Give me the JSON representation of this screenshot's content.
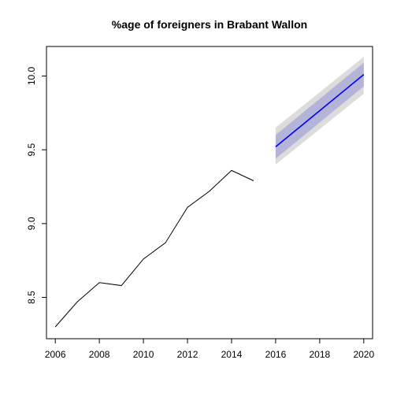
{
  "chart_data": {
    "type": "line",
    "title": "%age of foreigners in Brabant Wallon",
    "xlabel": "",
    "ylabel": "",
    "xlim": [
      2005.6,
      2020.4
    ],
    "ylim": [
      8.22,
      10.2
    ],
    "x_ticks": [
      2006,
      2008,
      2010,
      2012,
      2014,
      2016,
      2018,
      2020
    ],
    "y_ticks": [
      8.5,
      9.0,
      9.5,
      10.0
    ],
    "y_tick_labels": [
      "8.5",
      "9.0",
      "9.5",
      "10.0"
    ],
    "grid": false,
    "series": [
      {
        "role": "observed",
        "color": "#000000",
        "x": [
          2006,
          2007,
          2008,
          2009,
          2010,
          2011,
          2012,
          2013,
          2014,
          2015
        ],
        "y": [
          8.3,
          8.47,
          8.6,
          8.58,
          8.76,
          8.87,
          9.11,
          9.22,
          9.36,
          9.29
        ]
      },
      {
        "role": "forecast",
        "color": "#0000ff",
        "x": [
          2016,
          2020
        ],
        "y": [
          9.52,
          10.01
        ],
        "interval_80": {
          "color": "#b4b4d8",
          "lower": [
            9.44,
            9.93
          ],
          "upper": [
            9.6,
            10.09
          ]
        },
        "interval_95": {
          "color": "#dcdcdc",
          "lower": [
            9.4,
            9.88
          ],
          "upper": [
            9.65,
            10.13
          ]
        }
      }
    ]
  }
}
